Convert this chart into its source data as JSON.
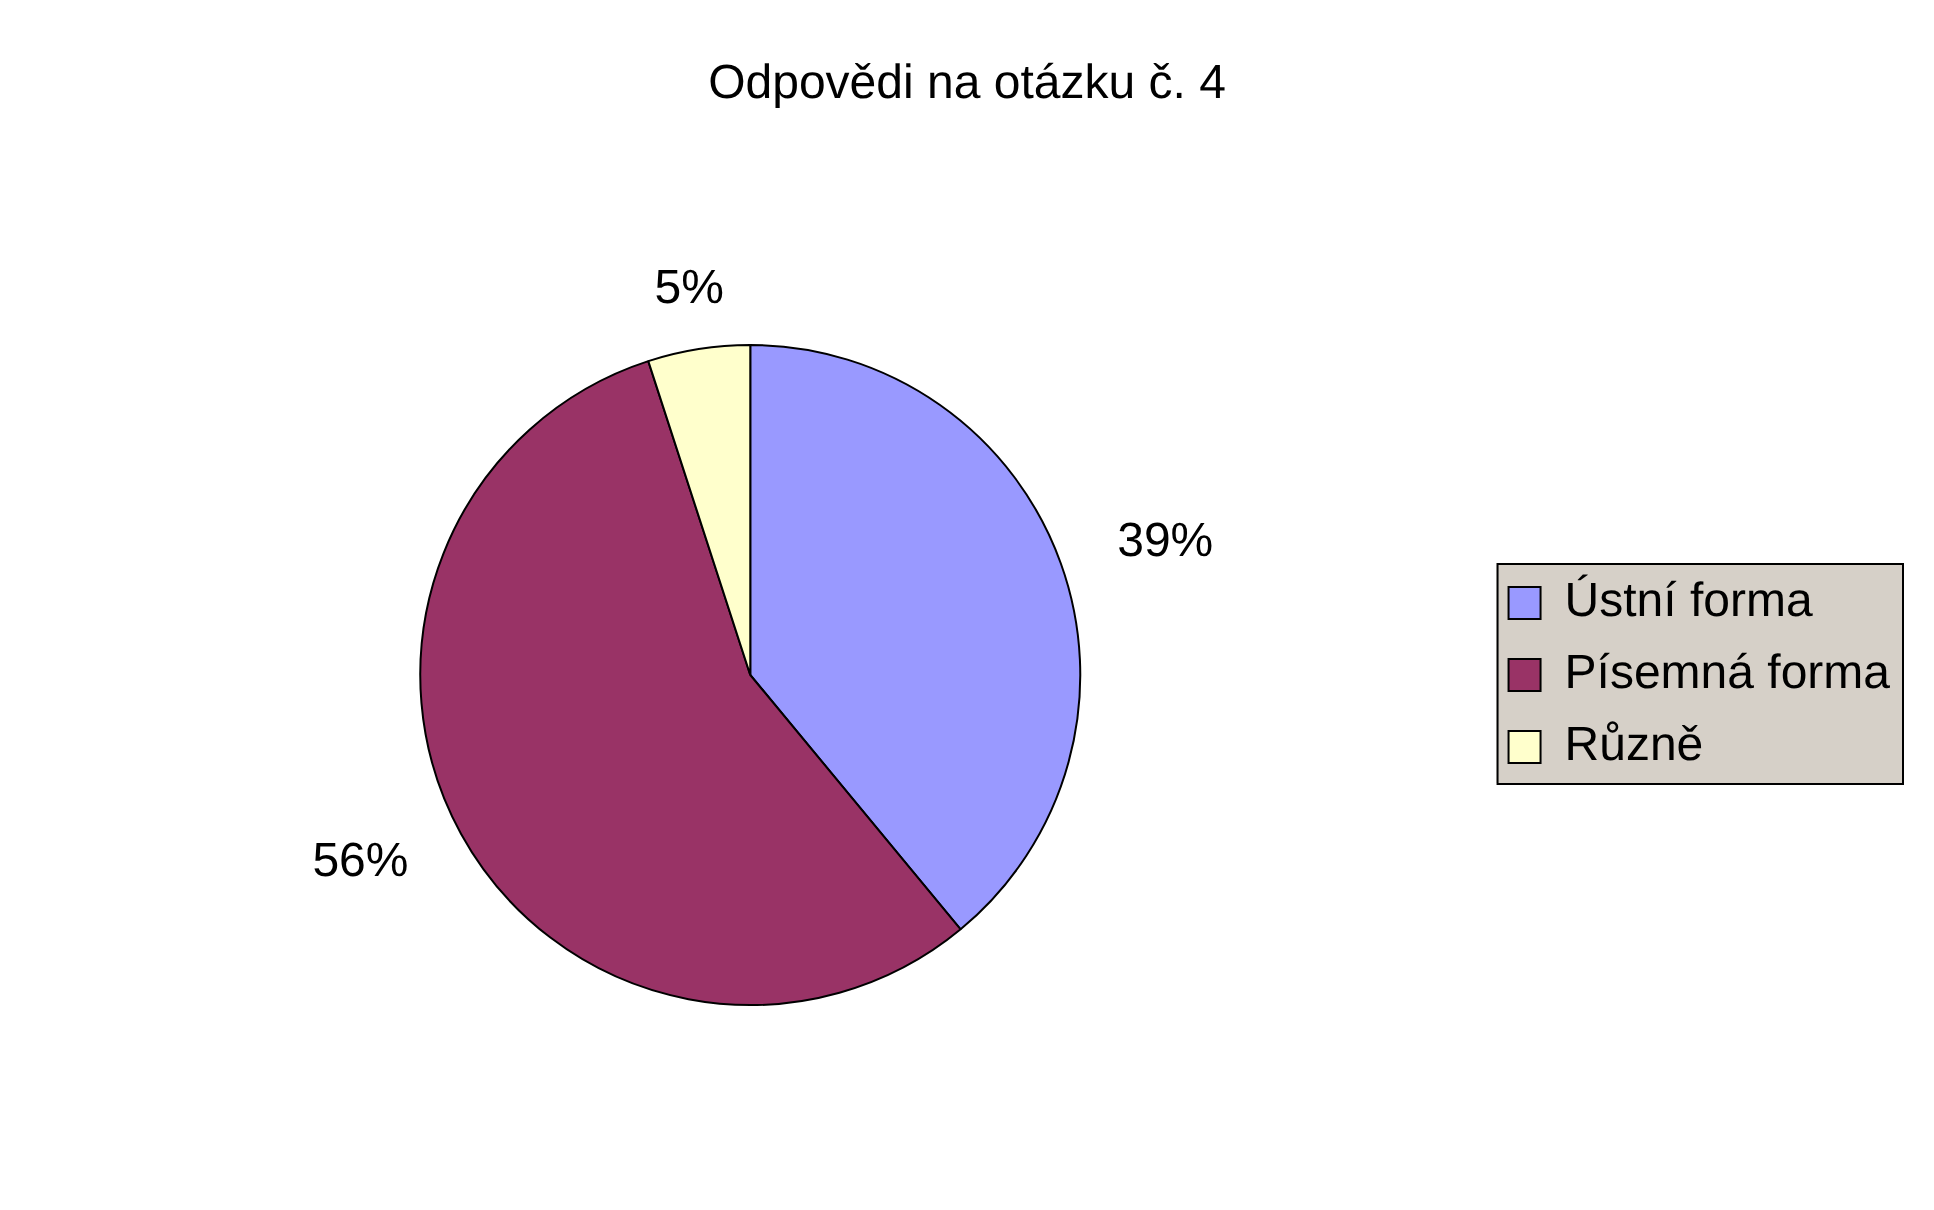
{
  "chart_data": {
    "type": "pie",
    "title": "Odpovědi na otázku č. 4",
    "categories": [
      "Ústní forma",
      "Písemná forma",
      "Různě"
    ],
    "values": [
      39,
      56,
      5
    ],
    "colors": [
      "#9999ff",
      "#993366",
      "#ffffcc"
    ],
    "value_labels": [
      "39%",
      "56%",
      "5%"
    ],
    "legend": "right"
  }
}
